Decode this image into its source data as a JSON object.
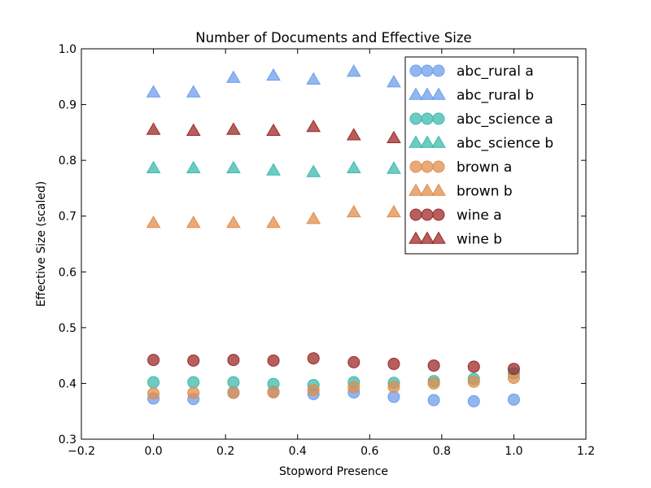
{
  "chart_data": {
    "type": "scatter",
    "title": "Number of Documents and Effective Size",
    "xlabel": "Stopword Presence",
    "ylabel": "Effective Size (scaled)",
    "xlim": [
      -0.2,
      1.2
    ],
    "ylim": [
      0.3,
      1.0
    ],
    "xticks": [
      -0.2,
      0.0,
      0.2,
      0.4,
      0.6,
      0.8,
      1.0,
      1.2
    ],
    "xtick_labels": [
      "−0.2",
      "0.0",
      "0.2",
      "0.4",
      "0.6",
      "0.8",
      "1.0",
      "1.2"
    ],
    "yticks": [
      0.3,
      0.4,
      0.5,
      0.6,
      0.7,
      0.8,
      0.9,
      1.0
    ],
    "ytick_labels": [
      "0.3",
      "0.4",
      "0.5",
      "0.6",
      "0.7",
      "0.8",
      "0.9",
      "1.0"
    ],
    "grid": false,
    "legend_position": "top-right",
    "x": [
      0.0,
      0.111,
      0.222,
      0.333,
      0.444,
      0.556,
      0.667,
      0.778,
      0.889,
      1.0
    ],
    "series": [
      {
        "name": "abc_rural a",
        "marker": "circle",
        "color": "#6d9eeb",
        "values": [
          0.373,
          0.372,
          0.384,
          0.385,
          0.381,
          0.384,
          0.376,
          0.37,
          0.368,
          0.371
        ]
      },
      {
        "name": "abc_rural b",
        "marker": "triangle",
        "color": "#6d9eeb",
        "values": [
          0.922,
          0.922,
          0.948,
          0.952,
          0.945,
          0.959,
          0.94,
          null,
          null,
          null
        ]
      },
      {
        "name": "abc_science a",
        "marker": "circle",
        "color": "#3cb9ad",
        "values": [
          0.402,
          0.402,
          0.402,
          0.399,
          0.397,
          0.402,
          0.401,
          0.404,
          0.408,
          0.418
        ]
      },
      {
        "name": "abc_science b",
        "marker": "triangle",
        "color": "#3cb9ad",
        "values": [
          0.786,
          0.786,
          0.786,
          0.782,
          0.779,
          0.786,
          0.785,
          null,
          null,
          null
        ]
      },
      {
        "name": "brown a",
        "marker": "circle",
        "color": "#e08d4c",
        "values": [
          0.382,
          0.383,
          0.383,
          0.384,
          0.388,
          0.393,
          0.394,
          0.4,
          0.403,
          0.41
        ]
      },
      {
        "name": "brown b",
        "marker": "triangle",
        "color": "#e08d4c",
        "values": [
          0.688,
          0.688,
          0.688,
          0.688,
          0.695,
          0.707,
          0.707,
          null,
          null,
          null
        ]
      },
      {
        "name": "wine a",
        "marker": "circle",
        "color": "#9c2a2a",
        "values": [
          0.442,
          0.441,
          0.442,
          0.441,
          0.445,
          0.438,
          0.435,
          0.432,
          0.43,
          0.426
        ]
      },
      {
        "name": "wine b",
        "marker": "triangle",
        "color": "#9c2a2a",
        "values": [
          0.855,
          0.853,
          0.855,
          0.853,
          0.86,
          0.845,
          0.84,
          null,
          null,
          null
        ]
      }
    ]
  }
}
